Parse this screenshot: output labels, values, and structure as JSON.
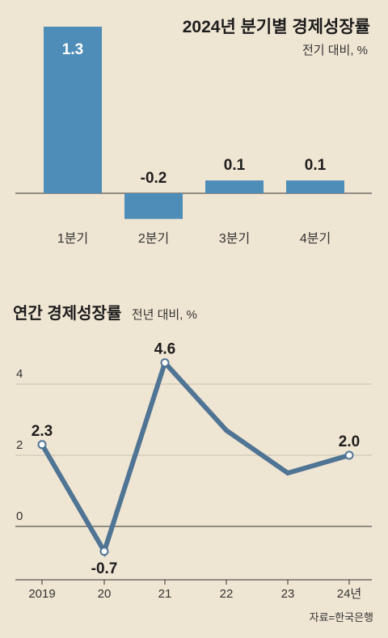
{
  "chart_data": [
    {
      "type": "bar",
      "title": "2024년 분기별 경제성장률",
      "subtitle": "전기 대비, %",
      "categories": [
        "1분기",
        "2분기",
        "3분기",
        "4분기"
      ],
      "values": [
        1.3,
        -0.2,
        0.1,
        0.1
      ],
      "data_labels": [
        "1.3",
        "-0.2",
        "0.1",
        "0.1"
      ],
      "ylim": [
        -0.2,
        1.3
      ],
      "grid": false,
      "colors": {
        "bar": "#4e8db8",
        "baseline": "#333333"
      }
    },
    {
      "type": "line",
      "title": "연간 경제성장률",
      "subtitle": "전년 대비, %",
      "categories": [
        "2019",
        "20",
        "21",
        "22",
        "23",
        "24년"
      ],
      "values": [
        2.3,
        -0.7,
        4.6,
        2.7,
        1.5,
        2.0
      ],
      "data_labels": [
        "2.3",
        "-0.7",
        "4.6",
        "",
        "",
        "2.0"
      ],
      "yticks": [
        "4",
        "2",
        "0"
      ],
      "ylim": [
        -1.4,
        5.0
      ],
      "grid": true,
      "colors": {
        "line": "#4f7494",
        "grid": "#c7bfb1",
        "marker_fill": "#ffffff"
      }
    }
  ],
  "source": "자료=한국은행"
}
